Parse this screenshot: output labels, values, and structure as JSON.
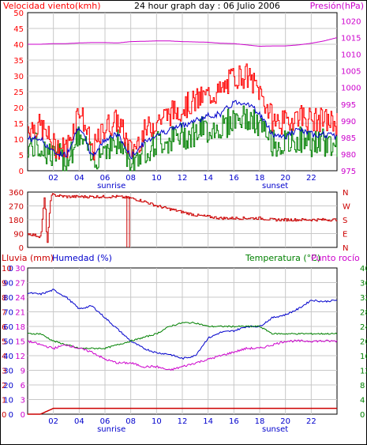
{
  "colors": {
    "red": "#ff0000",
    "blue": "#0000cc",
    "green": "#008000",
    "magenta": "#cc00cc",
    "darkred": "#cc0000",
    "grid": "#c8c8c8"
  },
  "panel_wind": {
    "label_left": "Velocidad viento(kmh)",
    "title": "24 hour graph day : 06 Julio 2006",
    "label_right": "Presión(hPa)",
    "y_left_ticks": [
      "50",
      "45",
      "40",
      "35",
      "30",
      "25",
      "20",
      "15",
      "10",
      "5",
      "0"
    ],
    "y_right_ticks": [
      "1020",
      "1015",
      "1010",
      "1005",
      "1000",
      "995",
      "990",
      "985",
      "980",
      "975"
    ]
  },
  "panel_dir": {
    "y_left_ticks": [
      "360",
      "270",
      "180",
      "90",
      "0"
    ],
    "y_right_labels": [
      "N",
      "W",
      "S",
      "E",
      "N"
    ]
  },
  "panel_rain": {
    "label_rain": "Lluvia (mm)",
    "label_hum": "Humedad (%)",
    "label_temp": "Temperatura (°C)",
    "label_dew": "Punto rocío",
    "y_rain_ticks": [
      "10",
      "9",
      "8",
      "7",
      "6",
      "5",
      "4",
      "3",
      "2",
      "1",
      "0"
    ],
    "y_hum_ticks": [
      "0",
      "90",
      "80",
      "70",
      "60",
      "50",
      "40",
      "30",
      "20",
      "10",
      "0"
    ],
    "y_left_ticks": [
      "30",
      "27",
      "24",
      "21",
      "18",
      "15",
      "12",
      "9",
      "6",
      "3",
      "0"
    ],
    "y_right_ticks": [
      "40",
      "36",
      "32",
      "28",
      "24",
      "20",
      "16",
      "12",
      "8",
      "4",
      "0"
    ]
  },
  "x_axis": {
    "hours": [
      "02",
      "04",
      "06",
      "08",
      "10",
      "12",
      "14",
      "16",
      "18",
      "20",
      "22"
    ],
    "sunrise": "sunrise",
    "sunset": "sunset"
  },
  "chart_data": [
    {
      "type": "line",
      "title": "24 hour graph day : 06 Julio 2006",
      "x": [
        0,
        1,
        2,
        3,
        4,
        5,
        6,
        7,
        8,
        9,
        10,
        11,
        12,
        13,
        14,
        15,
        16,
        17,
        18,
        19,
        20,
        21,
        22,
        23,
        24
      ],
      "ylabel": "Velocidad viento(kmh)",
      "y2label": "Presión(hPa)",
      "ylim": [
        0,
        50
      ],
      "y2lim": [
        975,
        1022.5
      ],
      "series": [
        {
          "name": "Velocidad viento(kmh)",
          "axis": "left",
          "values": [
            14,
            14,
            8,
            7,
            20,
            6,
            14,
            16,
            6,
            12,
            16,
            18,
            20,
            22,
            24,
            25,
            30,
            30,
            25,
            16,
            15,
            18,
            16,
            16,
            15
          ]
        },
        {
          "name": "Presión(hPa)",
          "axis": "right",
          "values": [
            1013,
            1013,
            1013.2,
            1013.2,
            1013.4,
            1013.5,
            1013.5,
            1013.4,
            1013.8,
            1013.9,
            1014,
            1014,
            1013.8,
            1013.7,
            1013.6,
            1013.3,
            1013.2,
            1012.8,
            1012.4,
            1012.5,
            1012.5,
            1012.8,
            1013.3,
            1014,
            1015
          ]
        }
      ]
    },
    {
      "type": "scatter",
      "xlabel": "",
      "ylabel": "",
      "ylim": [
        0,
        360
      ],
      "x": [
        0,
        1,
        1.3,
        1.5,
        1.8,
        2,
        3,
        4,
        5,
        6,
        7,
        8,
        9,
        10,
        11,
        12,
        13,
        14,
        15,
        16,
        17,
        18,
        19,
        20,
        21,
        22,
        23,
        24
      ],
      "values": [
        90,
        70,
        340,
        10,
        350,
        340,
        330,
        330,
        330,
        330,
        330,
        320,
        300,
        270,
        250,
        230,
        210,
        200,
        190,
        190,
        190,
        190,
        180,
        180,
        180,
        180,
        180,
        180
      ]
    },
    {
      "type": "line",
      "x": [
        0,
        1,
        2,
        3,
        4,
        5,
        6,
        7,
        8,
        9,
        10,
        11,
        12,
        13,
        14,
        15,
        16,
        17,
        18,
        19,
        20,
        21,
        22,
        23,
        24
      ],
      "series": [
        {
          "name": "Lluvia (mm)",
          "axis": "rain",
          "values": [
            0,
            0,
            0.4,
            0.4,
            0.4,
            0.4,
            0.4,
            0.4,
            0.4,
            0.4,
            0.4,
            0.4,
            0.4,
            0.4,
            0.4,
            0.4,
            0.4,
            0.4,
            0.4,
            0.4,
            0.4,
            0.4,
            0.4,
            0.4,
            0.4
          ]
        },
        {
          "name": "Humedad (%)",
          "axis": "hum",
          "values": [
            83,
            82,
            85,
            80,
            72,
            74,
            66,
            58,
            50,
            45,
            42,
            41,
            38,
            40,
            52,
            56,
            57,
            60,
            60,
            66,
            68,
            72,
            78,
            77,
            78
          ]
        },
        {
          "name": "Temperatura (°C)",
          "axis": "temp",
          "values": [
            22,
            22,
            20,
            19,
            18,
            18,
            18,
            19,
            20,
            21,
            22,
            24,
            25,
            25,
            24,
            24,
            24,
            24,
            24,
            22,
            22,
            22,
            22,
            22,
            22
          ]
        },
        {
          "name": "Punto rocío",
          "axis": "temp",
          "values": [
            20,
            19,
            18,
            19,
            18,
            17,
            15,
            14,
            14,
            13,
            13,
            12,
            13,
            14,
            15,
            16,
            17,
            18,
            18,
            19,
            20,
            20,
            20,
            20,
            20
          ]
        }
      ],
      "y_rain_lim": [
        0,
        10
      ],
      "y_hum_lim": [
        0,
        100
      ],
      "y_temp_lim": [
        0,
        40
      ]
    }
  ]
}
